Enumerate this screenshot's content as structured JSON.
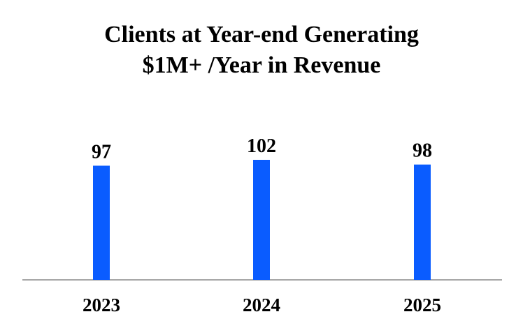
{
  "chart_data": {
    "type": "bar",
    "title_lines": [
      "Clients at Year-end Generating",
      "$1M+ /Year in Revenue"
    ],
    "categories": [
      "2023",
      "2024",
      "2025"
    ],
    "values": [
      97,
      102,
      98
    ],
    "data_labels": [
      "97",
      "102",
      "98"
    ],
    "xlabel": "",
    "ylabel": "",
    "ylim": [
      0,
      102
    ],
    "grid": false,
    "legend": "none"
  },
  "colors": {
    "bar": "#0a5cff",
    "axis": "#a6a6a6",
    "text": "#000000"
  }
}
